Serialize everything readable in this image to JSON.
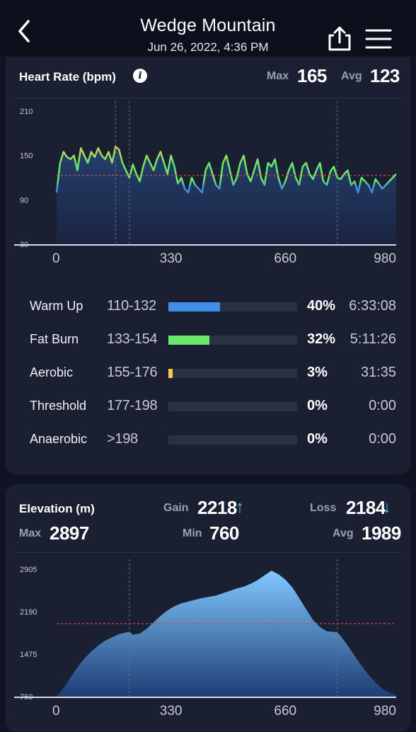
{
  "header": {
    "title": "Wedge Mountain",
    "subtitle": "Jun 26, 2022, 4:36 PM"
  },
  "heart_rate": {
    "title": "Heart Rate (bpm)",
    "max_label": "Max",
    "max_value": "165",
    "avg_label": "Avg",
    "avg_value": "123",
    "zones": [
      {
        "name": "Warm Up",
        "range": "110-132",
        "percent": "40%",
        "fraction": 0.4,
        "time": "6:33:08",
        "color": "#3f8ee8"
      },
      {
        "name": "Fat Burn",
        "range": "133-154",
        "percent": "32%",
        "fraction": 0.32,
        "time": "5:11:26",
        "color": "#6ae86a"
      },
      {
        "name": "Aerobic",
        "range": "155-176",
        "percent": "3%",
        "fraction": 0.03,
        "time": "31:35",
        "color": "#f5c94a"
      },
      {
        "name": "Threshold",
        "range": "177-198",
        "percent": "0%",
        "fraction": 0,
        "time": "0:00",
        "color": "#ff8c3a"
      },
      {
        "name": "Anaerobic",
        "range": ">198",
        "percent": "0%",
        "fraction": 0,
        "time": "0:00",
        "color": "#ff4a4a"
      }
    ]
  },
  "elevation": {
    "title": "Elevation (m)",
    "gain_label": "Gain",
    "gain_value": "2218",
    "gain_arrow": "↑",
    "loss_label": "Loss",
    "loss_value": "2184",
    "loss_arrow": "↓",
    "max_label": "Max",
    "max_value": "2897",
    "min_label": "Min",
    "min_value": "760",
    "avg_label": "Avg",
    "avg_value": "1989"
  },
  "chart_data": [
    {
      "type": "line",
      "title": "Heart Rate (bpm)",
      "y_ticks": [
        "210",
        "150",
        "90",
        "30"
      ],
      "x_ticks": [
        "0",
        "330",
        "660",
        "980"
      ],
      "ylim": [
        30,
        210
      ],
      "xlim": [
        0,
        980
      ],
      "average": 123,
      "markers": [
        170,
        210,
        810
      ],
      "series": [
        {
          "x": [
            0,
            10,
            20,
            30,
            40,
            50,
            60,
            70,
            80,
            90,
            100,
            110,
            120,
            130,
            140,
            150,
            160,
            170,
            180,
            190,
            200,
            210,
            220,
            230,
            240,
            250,
            260,
            270,
            280,
            290,
            300,
            310,
            320,
            330,
            340,
            350,
            360,
            370,
            380,
            390,
            400,
            410,
            420,
            430,
            440,
            450,
            460,
            470,
            480,
            490,
            500,
            510,
            520,
            530,
            540,
            550,
            560,
            570,
            580,
            590,
            600,
            610,
            620,
            630,
            640,
            650,
            660,
            670,
            680,
            690,
            700,
            710,
            720,
            730,
            740,
            750,
            760,
            770,
            780,
            790,
            800,
            810,
            820,
            830,
            840,
            850,
            860,
            870,
            880,
            890,
            900,
            910,
            920,
            930,
            940,
            950,
            960,
            970,
            980
          ],
          "y": [
            100,
            140,
            155,
            148,
            145,
            150,
            130,
            160,
            150,
            140,
            155,
            148,
            160,
            150,
            145,
            155,
            140,
            162,
            158,
            140,
            130,
            120,
            138,
            125,
            115,
            135,
            150,
            140,
            130,
            145,
            155,
            140,
            125,
            150,
            135,
            112,
            120,
            105,
            100,
            120,
            110,
            105,
            100,
            130,
            140,
            125,
            110,
            105,
            140,
            150,
            130,
            110,
            120,
            140,
            150,
            125,
            115,
            130,
            145,
            120,
            110,
            140,
            135,
            145,
            120,
            105,
            115,
            130,
            140,
            120,
            110,
            135,
            140,
            125,
            118,
            130,
            140,
            115,
            110,
            128,
            135,
            120,
            118,
            125,
            130,
            110,
            115,
            100,
            120,
            115,
            110,
            100,
            118,
            112,
            105,
            110,
            115,
            120,
            125
          ]
        }
      ]
    },
    {
      "type": "area",
      "title": "Elevation (m)",
      "y_ticks": [
        "2905",
        "2190",
        "1475",
        "760"
      ],
      "x_ticks": [
        "0",
        "330",
        "660",
        "980"
      ],
      "ylim": [
        760,
        2905
      ],
      "xlim": [
        0,
        980
      ],
      "average": 1989,
      "markers": [
        210,
        810
      ],
      "series": [
        {
          "x": [
            0,
            20,
            40,
            60,
            80,
            100,
            120,
            140,
            160,
            180,
            200,
            210,
            220,
            240,
            260,
            280,
            300,
            320,
            340,
            360,
            380,
            400,
            420,
            440,
            460,
            480,
            500,
            520,
            540,
            560,
            580,
            600,
            620,
            640,
            660,
            680,
            700,
            720,
            740,
            760,
            780,
            800,
            810,
            820,
            840,
            860,
            880,
            900,
            920,
            940,
            960,
            980
          ],
          "y": [
            760,
            900,
            1080,
            1250,
            1400,
            1520,
            1620,
            1700,
            1760,
            1810,
            1840,
            1850,
            1800,
            1820,
            1900,
            2010,
            2120,
            2210,
            2280,
            2330,
            2360,
            2390,
            2420,
            2440,
            2460,
            2500,
            2540,
            2580,
            2610,
            2660,
            2720,
            2800,
            2880,
            2820,
            2730,
            2600,
            2420,
            2230,
            2050,
            1930,
            1860,
            1850,
            1840,
            1780,
            1620,
            1450,
            1280,
            1130,
            1000,
            890,
            830,
            780
          ]
        }
      ]
    }
  ]
}
